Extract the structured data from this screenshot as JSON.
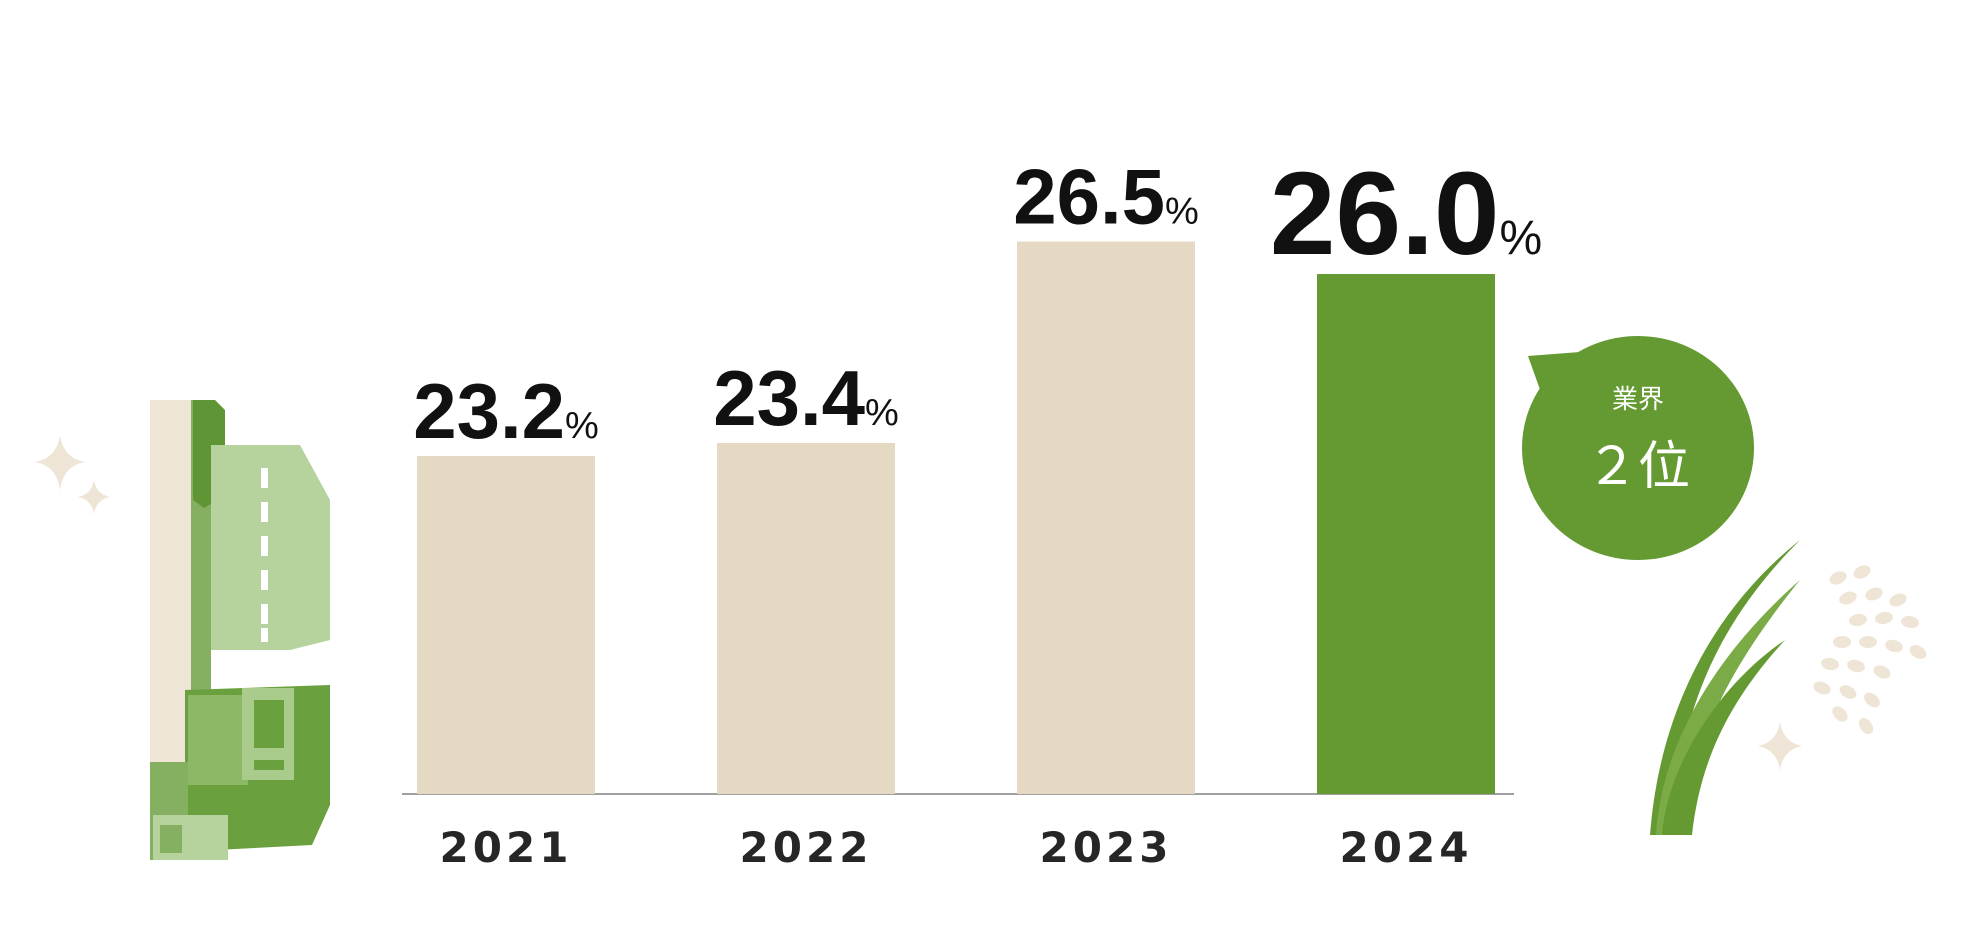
{
  "chart_data": {
    "type": "bar",
    "categories": [
      "2021",
      "2022",
      "2023",
      "2024"
    ],
    "values": [
      23.2,
      23.4,
      26.5,
      26.0
    ],
    "value_labels": [
      "23.2",
      "23.4",
      "26.5",
      "26.0"
    ],
    "unit": "%",
    "ylim": [
      20.0,
      28.0
    ],
    "grid": false,
    "legend": "none",
    "highlight_index": 3,
    "colors": {
      "bar": "#e6d9c4",
      "highlight": "#659a32",
      "axis": "#a0a0a0"
    },
    "annotation": {
      "line1": "業界",
      "line2": "２位"
    }
  },
  "decorations": {
    "left": "green-truck-illustration",
    "right": "rice-ear-illustration",
    "sparkle": "sparkle-icon"
  }
}
